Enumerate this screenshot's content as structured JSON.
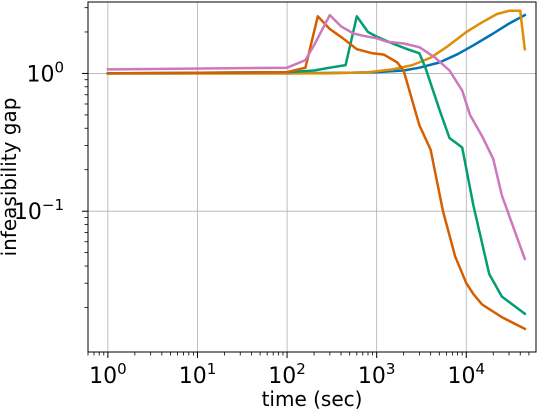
{
  "chart_data": {
    "type": "line",
    "xlabel": "time (sec)",
    "ylabel": "infeasibility gap",
    "xscale": "log",
    "yscale": "log",
    "xlim": [
      0.6,
      60000
    ],
    "ylim": [
      0.0095,
      3.3
    ],
    "grid": true,
    "x_ticks": [
      {
        "value": 1,
        "base": "10",
        "exp": "0"
      },
      {
        "value": 10,
        "base": "10",
        "exp": "1"
      },
      {
        "value": 100,
        "base": "10",
        "exp": "2"
      },
      {
        "value": 1000,
        "base": "10",
        "exp": "3"
      },
      {
        "value": 10000,
        "base": "10",
        "exp": "4"
      }
    ],
    "y_ticks": [
      {
        "value": 1,
        "base": "10",
        "exp": "0"
      },
      {
        "value": 0.1,
        "base": "10",
        "exp": "−1"
      }
    ],
    "series": [
      {
        "color": "#0173b2",
        "points": [
          [
            1,
            1.0
          ],
          [
            100,
            1.0
          ],
          [
            500,
            1.01
          ],
          [
            1000,
            1.02
          ],
          [
            2000,
            1.05
          ],
          [
            3000,
            1.1
          ],
          [
            5000,
            1.2
          ],
          [
            8000,
            1.38
          ],
          [
            12000,
            1.6
          ],
          [
            20000,
            1.95
          ],
          [
            30000,
            2.3
          ],
          [
            45000,
            2.65
          ]
        ]
      },
      {
        "color": "#de8f05",
        "points": [
          [
            1,
            1.0
          ],
          [
            300,
            1.0
          ],
          [
            800,
            1.02
          ],
          [
            1500,
            1.07
          ],
          [
            2500,
            1.15
          ],
          [
            4000,
            1.3
          ],
          [
            6000,
            1.55
          ],
          [
            10000,
            2.0
          ],
          [
            15000,
            2.35
          ],
          [
            22000,
            2.7
          ],
          [
            30000,
            2.85
          ],
          [
            40000,
            2.85
          ],
          [
            45000,
            1.5
          ]
        ]
      },
      {
        "color": "#029e73",
        "points": [
          [
            1,
            1.0
          ],
          [
            100,
            1.02
          ],
          [
            200,
            1.05
          ],
          [
            300,
            1.1
          ],
          [
            450,
            1.15
          ],
          [
            600,
            2.6
          ],
          [
            800,
            2.0
          ],
          [
            1000,
            1.85
          ],
          [
            1500,
            1.65
          ],
          [
            2200,
            1.5
          ],
          [
            3000,
            1.4
          ],
          [
            3500,
            1.1
          ],
          [
            5000,
            0.55
          ],
          [
            6500,
            0.34
          ],
          [
            9000,
            0.29
          ],
          [
            12000,
            0.11
          ],
          [
            18000,
            0.035
          ],
          [
            25000,
            0.024
          ],
          [
            45000,
            0.018
          ]
        ]
      },
      {
        "color": "#d55e00",
        "points": [
          [
            1,
            1.0
          ],
          [
            100,
            1.02
          ],
          [
            160,
            1.1
          ],
          [
            220,
            2.6
          ],
          [
            300,
            2.1
          ],
          [
            420,
            1.8
          ],
          [
            600,
            1.5
          ],
          [
            900,
            1.4
          ],
          [
            1200,
            1.37
          ],
          [
            1700,
            1.2
          ],
          [
            2000,
            1.05
          ],
          [
            3000,
            0.42
          ],
          [
            4000,
            0.28
          ],
          [
            5500,
            0.1
          ],
          [
            7500,
            0.047
          ],
          [
            10000,
            0.03
          ],
          [
            12000,
            0.025
          ],
          [
            15000,
            0.021
          ],
          [
            25000,
            0.017
          ],
          [
            45000,
            0.014
          ]
        ]
      },
      {
        "color": "#cc78bc",
        "points": [
          [
            1,
            1.07
          ],
          [
            100,
            1.1
          ],
          [
            160,
            1.25
          ],
          [
            200,
            1.6
          ],
          [
            300,
            2.65
          ],
          [
            400,
            2.2
          ],
          [
            550,
            1.95
          ],
          [
            700,
            1.88
          ],
          [
            1000,
            1.8
          ],
          [
            1300,
            1.7
          ],
          [
            2000,
            1.65
          ],
          [
            3000,
            1.55
          ],
          [
            4500,
            1.3
          ],
          [
            6500,
            1.05
          ],
          [
            9000,
            0.75
          ],
          [
            11000,
            0.5
          ],
          [
            15000,
            0.35
          ],
          [
            20000,
            0.24
          ],
          [
            25000,
            0.13
          ],
          [
            45000,
            0.045
          ]
        ]
      }
    ]
  }
}
